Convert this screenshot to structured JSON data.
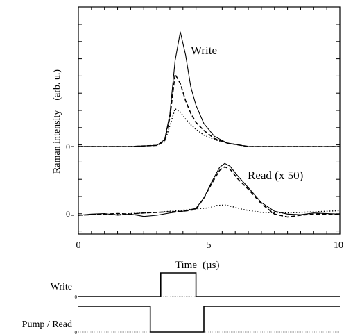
{
  "chart_data": [
    {
      "type": "line",
      "xlabel": "Time",
      "xunit": "(µs)",
      "ylabel": "Raman intensity",
      "yunit": "(arb. u.)",
      "xlim": [
        0,
        10
      ],
      "x_ticks": [
        "0",
        "5",
        "10"
      ],
      "y_tick_label": "0",
      "grid": false,
      "panels": [
        {
          "label": "Write",
          "series": [
            {
              "style": "solid",
              "x": [
                0,
                1,
                2,
                3,
                3.3,
                3.5,
                3.7,
                3.9,
                4.1,
                4.3,
                4.5,
                4.8,
                5.2,
                5.7,
                6.5,
                10
              ],
              "y": [
                0,
                0,
                0,
                0.01,
                0.06,
                0.28,
                0.75,
                1.0,
                0.8,
                0.52,
                0.36,
                0.2,
                0.09,
                0.03,
                0,
                0
              ]
            },
            {
              "style": "dashed",
              "x": [
                0,
                1,
                2,
                3,
                3.3,
                3.5,
                3.7,
                3.9,
                4.1,
                4.3,
                4.5,
                4.8,
                5.2,
                5.7,
                6.5,
                10
              ],
              "y": [
                0,
                0,
                0,
                0.01,
                0.05,
                0.25,
                0.63,
                0.55,
                0.4,
                0.29,
                0.21,
                0.14,
                0.07,
                0.03,
                0,
                0
              ]
            },
            {
              "style": "dotted",
              "x": [
                0,
                1,
                2,
                3,
                3.3,
                3.5,
                3.7,
                3.9,
                4.1,
                4.3,
                4.5,
                4.8,
                5.2,
                5.7,
                6.5,
                10
              ],
              "y": [
                0,
                0,
                0,
                0.01,
                0.04,
                0.18,
                0.33,
                0.3,
                0.24,
                0.19,
                0.15,
                0.1,
                0.06,
                0.03,
                0,
                0
              ]
            }
          ]
        },
        {
          "label": "Read (x 50)",
          "series": [
            {
              "style": "solid",
              "x": [
                0,
                0.5,
                1,
                1.5,
                2,
                2.5,
                3,
                3.5,
                4,
                4.5,
                4.8,
                5.1,
                5.4,
                5.6,
                5.8,
                6.1,
                6.5,
                7,
                7.5,
                8,
                8.5,
                9,
                9.5,
                10
              ],
              "y": [
                0,
                0.02,
                0.03,
                0,
                0.02,
                -0.02,
                0,
                0.04,
                0.07,
                0.12,
                0.3,
                0.58,
                0.83,
                0.9,
                0.85,
                0.68,
                0.48,
                0.22,
                0.07,
                0.02,
                0.01,
                0.04,
                0.03,
                0.02
              ]
            },
            {
              "style": "dashed",
              "x": [
                0,
                0.5,
                1,
                1.5,
                2,
                2.5,
                3,
                3.5,
                4,
                4.5,
                4.8,
                5.1,
                5.4,
                5.6,
                5.8,
                6.1,
                6.5,
                7,
                7.5,
                8,
                8.5,
                9,
                9.5,
                10
              ],
              "y": [
                0,
                0.01,
                0.02,
                0.03,
                0.02,
                0.04,
                0.05,
                0.06,
                0.07,
                0.1,
                0.3,
                0.55,
                0.78,
                0.84,
                0.8,
                0.63,
                0.45,
                0.2,
                0.02,
                -0.03,
                0,
                0.02,
                0.02,
                0.01
              ]
            },
            {
              "style": "dotted",
              "x": [
                0,
                0.5,
                1,
                1.5,
                2,
                2.5,
                3,
                3.5,
                4,
                4.5,
                5,
                5.3,
                5.6,
                5.9,
                6.3,
                7,
                8,
                9,
                9.5,
                10
              ],
              "y": [
                0,
                0.01,
                0.02,
                0.01,
                0.03,
                0.04,
                0.05,
                0.07,
                0.09,
                0.11,
                0.13,
                0.17,
                0.18,
                0.15,
                0.1,
                0.05,
                0.04,
                0.06,
                0.07,
                0.08
              ]
            }
          ]
        }
      ]
    },
    {
      "type": "line",
      "xlim": [
        0,
        10
      ],
      "zero_label": "0",
      "traces": [
        {
          "label": "Write",
          "x": [
            0,
            3.15,
            3.15,
            4.5,
            4.5,
            10
          ],
          "y": [
            0,
            0,
            1,
            1,
            0,
            0
          ]
        },
        {
          "label": "Pump / Read",
          "x": [
            0,
            2.75,
            2.75,
            4.8,
            4.8,
            10
          ],
          "y": [
            1,
            1,
            0,
            0,
            1,
            1
          ]
        }
      ]
    }
  ]
}
